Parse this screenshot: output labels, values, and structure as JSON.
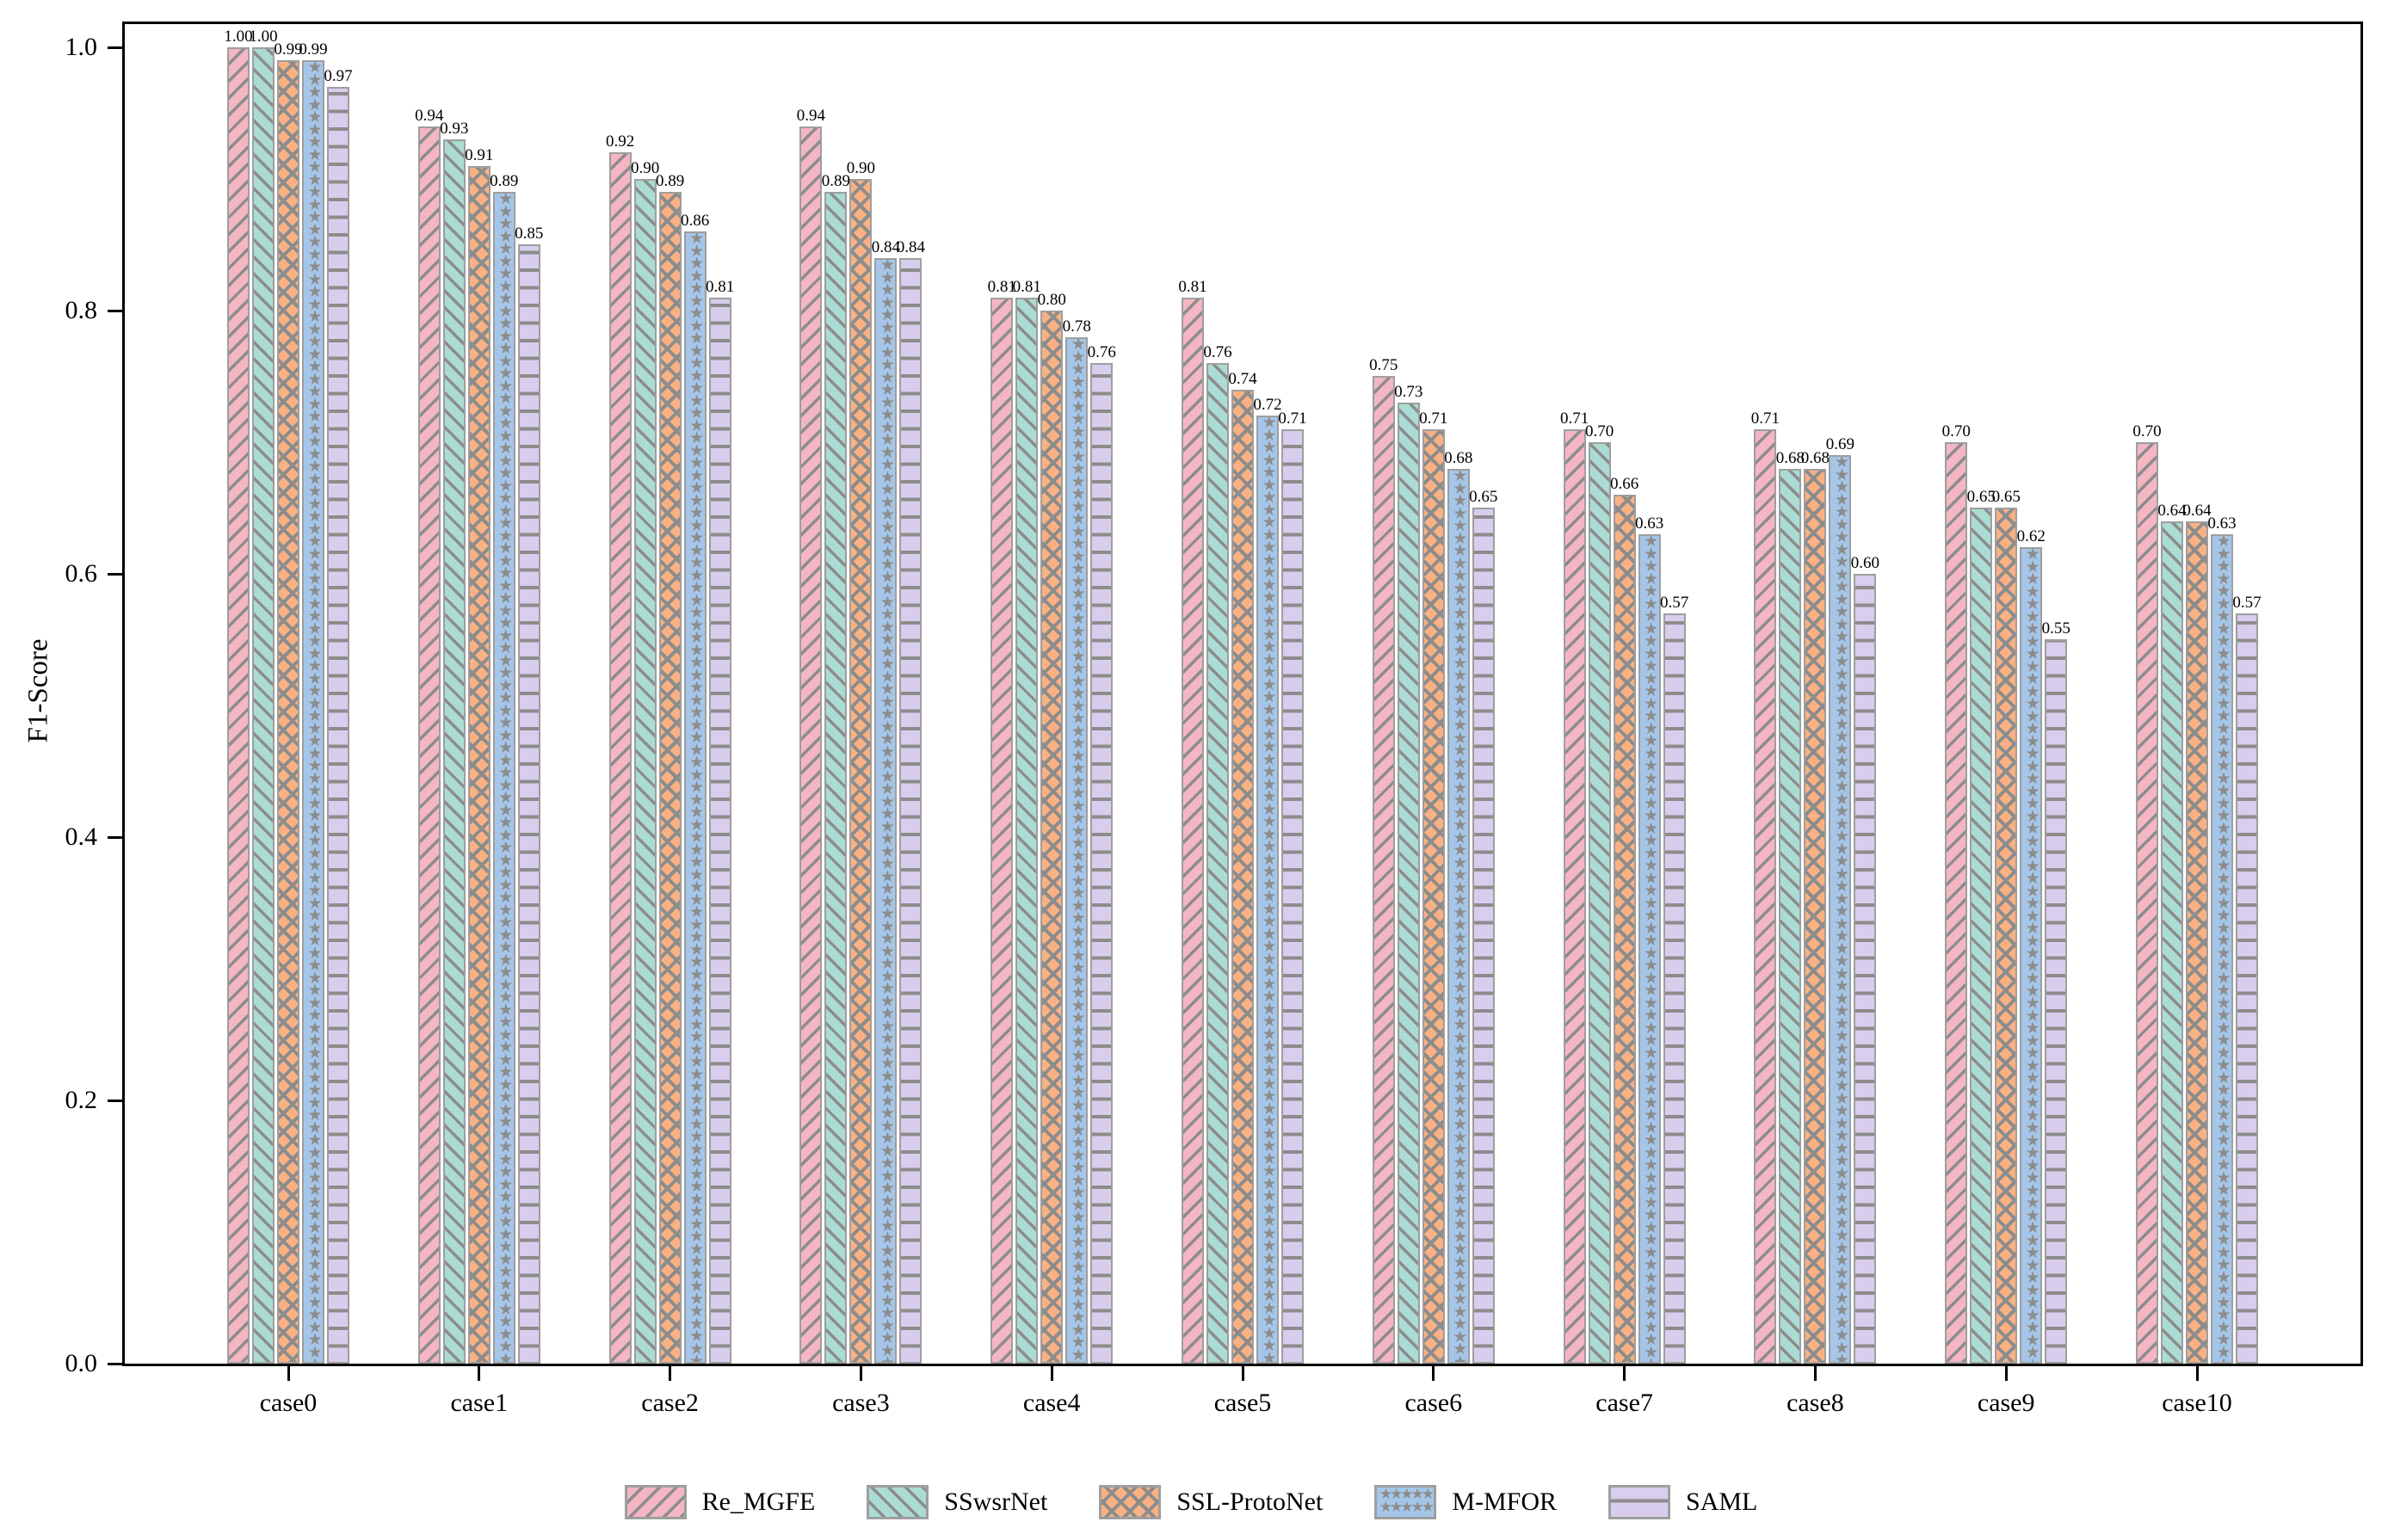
{
  "chart_data": {
    "type": "bar",
    "title": "",
    "xlabel": "",
    "ylabel": "F1-Score",
    "ylim": [
      0.0,
      1.0
    ],
    "yticks": [
      "0.0",
      "0.2",
      "0.4",
      "0.6",
      "0.8",
      "1.0"
    ],
    "grid": false,
    "legend_position": "bottom",
    "bar_value_labels": true,
    "value_label_decimals": 2,
    "hatch_color": "#8c8c8c",
    "edge_color": "#9e9e9e",
    "axis_color": "#000000",
    "categories": [
      "case0",
      "case1",
      "case2",
      "case3",
      "case4",
      "case5",
      "case6",
      "case7",
      "case8",
      "case9",
      "case10"
    ],
    "series": [
      {
        "name": "Re_MGFE",
        "hatch": "/",
        "color": "#f4b6c3",
        "values": [
          1.0,
          0.94,
          0.92,
          0.94,
          0.81,
          0.81,
          0.75,
          0.71,
          0.71,
          0.7,
          0.7
        ]
      },
      {
        "name": "SSwsrNet",
        "hatch": "\\",
        "color": "#abdcd4",
        "values": [
          1.0,
          0.93,
          0.9,
          0.89,
          0.81,
          0.76,
          0.73,
          0.7,
          0.68,
          0.65,
          0.64
        ]
      },
      {
        "name": "SSL-ProtoNet",
        "hatch": "x",
        "color": "#f9b183",
        "values": [
          0.99,
          0.91,
          0.89,
          0.9,
          0.8,
          0.74,
          0.71,
          0.66,
          0.68,
          0.65,
          0.64
        ]
      },
      {
        "name": "M-MFOR",
        "hatch": "*",
        "color": "#a5c6e9",
        "values": [
          0.99,
          0.89,
          0.86,
          0.84,
          0.78,
          0.72,
          0.68,
          0.63,
          0.69,
          0.62,
          0.63
        ]
      },
      {
        "name": "SAML",
        "hatch": "-",
        "color": "#d9cded",
        "values": [
          0.97,
          0.85,
          0.81,
          0.84,
          0.76,
          0.71,
          0.65,
          0.57,
          0.6,
          0.55,
          0.57
        ]
      }
    ]
  }
}
